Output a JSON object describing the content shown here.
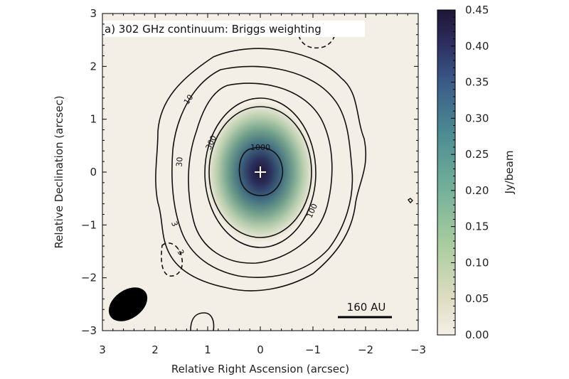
{
  "chart_data": {
    "type": "heatmap",
    "title": "a) 302 GHz continuum: Briggs weighting",
    "xlabel": "Relative Right Ascension (arcsec)",
    "ylabel": "Relative Declination (arcsec)",
    "xlim": [
      3,
      -3
    ],
    "ylim": [
      -3,
      3
    ],
    "x_ticks": [
      "3",
      "2",
      "1",
      "0",
      "−1",
      "−2",
      "−3"
    ],
    "y_ticks": [
      "3",
      "2",
      "1",
      "0",
      "−1",
      "−2",
      "−3"
    ],
    "colorbar": {
      "label": "Jy/beam",
      "range": [
        0.0,
        0.45
      ],
      "ticks": [
        "0.00",
        "0.05",
        "0.10",
        "0.15",
        "0.20",
        "0.25",
        "0.30",
        "0.35",
        "0.40",
        "0.45"
      ]
    },
    "source": {
      "peak_x": 0.0,
      "peak_y": 0.0,
      "peak_value": 0.45,
      "marker": "+"
    },
    "contour_levels": [
      "−3",
      "3",
      "10",
      "30",
      "100",
      "300",
      "1000"
    ],
    "scale_bar": {
      "label": "160 AU"
    },
    "colors": {
      "low": "#f4efe6",
      "mid": "#7aa88e",
      "high": "#1e1634"
    }
  }
}
